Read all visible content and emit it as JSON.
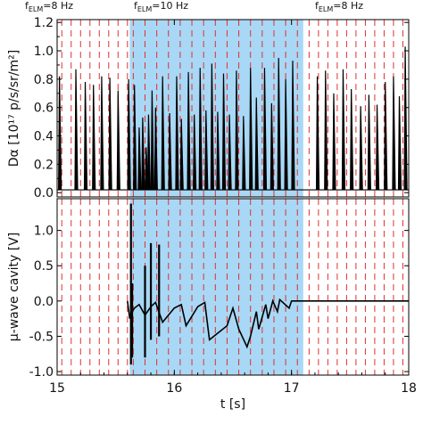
{
  "chart_data": [
    {
      "type": "line",
      "ylabel": "Dα [10¹⁷ p/s/sr/m²]",
      "xlim": [
        15,
        18
      ],
      "ylim": [
        -0.03,
        1.22
      ],
      "yticks": [
        "0.0",
        "0.2",
        "0.4",
        "0.6",
        "0.8",
        "1.0",
        "1.2"
      ],
      "regimes": [
        {
          "label": "fELM=8 Hz",
          "x": 15.0
        },
        {
          "label": "fELM=10 Hz",
          "x": 15.62
        },
        {
          "label": "fELM=8 Hz",
          "x": 17.12
        }
      ],
      "shaded_region": [
        15.62,
        17.1
      ],
      "shade_color": "#a8d8f5",
      "dashed_lines": [
        15.04,
        15.12,
        15.2,
        15.28,
        15.36,
        15.44,
        15.52,
        15.6,
        15.65,
        15.75,
        15.85,
        15.95,
        16.05,
        16.15,
        16.25,
        16.35,
        16.45,
        16.55,
        16.65,
        16.75,
        16.85,
        16.95,
        17.05,
        17.15,
        17.23,
        17.31,
        17.39,
        17.47,
        17.55,
        17.63,
        17.71,
        17.79,
        17.87,
        17.95
      ],
      "dashed_color": "#e03030",
      "baseline": 0.02,
      "spikes": {
        "x": [
          15.02,
          15.16,
          15.24,
          15.31,
          15.38,
          15.45,
          15.52,
          15.61,
          15.66,
          15.7,
          15.73,
          15.76,
          15.78,
          15.81,
          15.84,
          15.9,
          15.96,
          16.02,
          16.06,
          16.12,
          16.17,
          16.22,
          16.27,
          16.32,
          16.37,
          16.42,
          16.47,
          16.53,
          16.59,
          16.65,
          16.7,
          16.77,
          16.83,
          16.89,
          16.95,
          17.01,
          17.22,
          17.29,
          17.36,
          17.44,
          17.51,
          17.59,
          17.66,
          17.73,
          17.8,
          17.87,
          17.92,
          17.97
        ],
        "y": [
          0.82,
          0.87,
          0.78,
          0.76,
          0.82,
          0.81,
          0.72,
          0.8,
          0.76,
          0.46,
          0.53,
          0.32,
          0.55,
          0.72,
          0.6,
          0.82,
          0.56,
          0.82,
          0.52,
          0.85,
          0.55,
          0.88,
          0.58,
          0.91,
          0.57,
          0.84,
          0.55,
          0.86,
          0.54,
          0.88,
          0.67,
          0.88,
          0.63,
          0.95,
          0.8,
          0.93,
          0.82,
          0.86,
          0.7,
          0.87,
          0.73,
          0.61,
          0.69,
          0.62,
          0.78,
          0.82,
          0.68,
          1.03
        ]
      },
      "series_color": "#000000"
    },
    {
      "type": "line",
      "ylabel": "μ-wave cavity [V]",
      "xlabel": "t [s]",
      "xlim": [
        15,
        18
      ],
      "ylim": [
        -1.05,
        1.45
      ],
      "xticks": [
        "15",
        "16",
        "17",
        "18"
      ],
      "yticks": [
        "-1.0",
        "-0.5",
        "0.0",
        "0.5",
        "1.0"
      ],
      "shaded_region": [
        15.62,
        17.1
      ],
      "shade_color": "#a8d8f5",
      "dashed_color": "#e03030",
      "trace": {
        "x": [
          15.6,
          15.62,
          15.64,
          15.66,
          15.7,
          15.75,
          15.8,
          15.84,
          15.9,
          16.0,
          16.06,
          16.1,
          16.2,
          16.26,
          16.3,
          16.45,
          16.5,
          16.55,
          16.62,
          16.65,
          16.7,
          16.72,
          16.78,
          16.8,
          16.84,
          16.88,
          16.9,
          16.98,
          17.0,
          17.02,
          17.05,
          17.1,
          17.5,
          18.0
        ],
        "y": [
          0.0,
          -0.25,
          -0.15,
          -0.1,
          -0.05,
          -0.2,
          -0.08,
          -0.02,
          -0.3,
          -0.1,
          -0.05,
          -0.35,
          -0.08,
          -0.02,
          -0.55,
          -0.35,
          -0.1,
          -0.4,
          -0.65,
          -0.5,
          -0.15,
          -0.4,
          -0.05,
          -0.25,
          0.0,
          -0.15,
          0.02,
          -0.1,
          0.0,
          0.0,
          0.0,
          0.0,
          0.0,
          0.0
        ]
      },
      "vertical_spikes": {
        "x": [
          15.63,
          15.64,
          15.75,
          15.8,
          15.87
        ],
        "ymin": [
          -0.9,
          -0.8,
          -0.8,
          -0.55,
          -0.5
        ],
        "ymax": [
          1.38,
          0.25,
          0.5,
          0.82,
          0.8
        ]
      },
      "series_color": "#000000"
    }
  ]
}
